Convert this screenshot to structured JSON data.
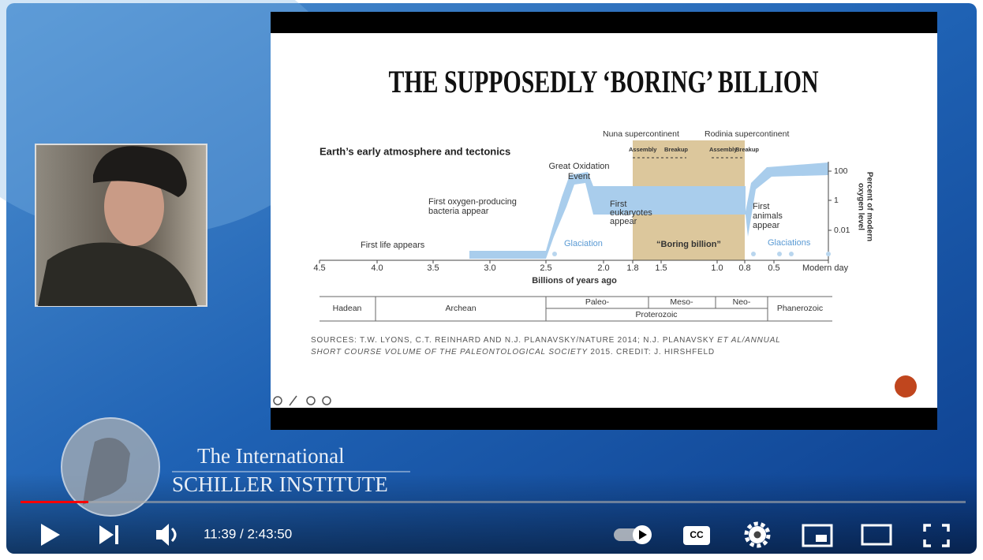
{
  "slide": {
    "title": "THE SUPPOSEDLY ‘BORING’ BILLION",
    "chart": {
      "heading": "Earth’s early atmosphere and tectonics",
      "supercontinents": {
        "nuna": "Nuna supercontinent",
        "rodinia": "Rodinia supercontinent",
        "nuna_phases": [
          "Assembly",
          "Breakup"
        ],
        "rodinia_phases": [
          "Assembly",
          "Breakup"
        ]
      },
      "x_ticks": [
        "4.5",
        "4.0",
        "3.5",
        "3.0",
        "2.5",
        "2.0",
        "1.8",
        "1.5",
        "1.0",
        "0.8",
        "0.5",
        "Modern day"
      ],
      "x_label": "Billions of years ago",
      "y_ticks": [
        "100",
        "1",
        "0.01"
      ],
      "y_label": [
        "Percent of modern",
        "oxygen level"
      ],
      "annotations": {
        "great_oxidation": [
          "Great Oxidation",
          "Event"
        ],
        "bacteria": [
          "First oxygen-producing",
          "bacteria appear"
        ],
        "first_life": "First life appears",
        "glaciation": "Glaciation",
        "eukaryotes": [
          "First",
          "eukaryotes",
          "appear"
        ],
        "boring_billion": "“Boring billion”",
        "animals": [
          "First",
          "animals",
          "appear"
        ],
        "glaciations": "Glaciations"
      },
      "eons": {
        "hadean": "Hadean",
        "archean": "Archean",
        "paleo": "Paleo-",
        "meso": "Meso-",
        "neo": "Neo-",
        "proterozoic": "Proterozoic",
        "phanerozoic": "Phanerozoic"
      }
    },
    "sources": {
      "line1": "SOURCES: T.W. LYONS, C.T. REINHARD AND N.J. PLANAVSKY/NATURE 2014; N.J. PLANAVSKY ",
      "line1_italic": "ET AL/ANNUAL",
      "line2_italic": "SHORT COURSE VOLUME OF THE PALEONTOLOGICAL SOCIETY",
      "line2": " 2015. CREDIT: J. HIRSHFELD"
    }
  },
  "overlay": {
    "line1": "The International",
    "line2": "SCHILLER INSTITUTE"
  },
  "player": {
    "time": "11:39 / 2:43:50",
    "cc": "CC"
  }
}
